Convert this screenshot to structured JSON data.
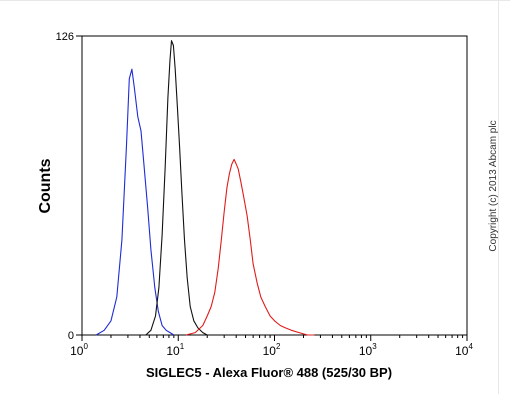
{
  "chart_data": {
    "type": "line",
    "title": "",
    "xlabel": "SIGLEC5 - Alexa Fluor® 488 (525/30 BP)",
    "ylabel": "Counts",
    "x_scale": "log",
    "xlim": [
      1,
      10000
    ],
    "ylim": [
      0,
      126
    ],
    "x_ticks": [
      {
        "value": 1,
        "base": "10",
        "exp": "0"
      },
      {
        "value": 10,
        "base": "10",
        "exp": "1"
      },
      {
        "value": 100,
        "base": "10",
        "exp": "2"
      },
      {
        "value": 1000,
        "base": "10",
        "exp": "3"
      },
      {
        "value": 10000,
        "base": "10",
        "exp": "4"
      }
    ],
    "y_ticks": [
      {
        "value": 0,
        "label": "0"
      },
      {
        "value": 126,
        "label": "126"
      }
    ],
    "grid": false,
    "legend": "none",
    "series": [
      {
        "color": "#1f2bd6",
        "x": [
          1.4,
          1.7,
          2.0,
          2.3,
          2.6,
          2.9,
          3.1,
          3.3,
          3.5,
          3.8,
          4.1,
          4.4,
          4.8,
          5.2,
          5.7,
          6.2,
          6.8,
          7.5,
          8.2,
          9.0
        ],
        "y": [
          0,
          2,
          6,
          16,
          40,
          80,
          108,
          112,
          104,
          92,
          86,
          72,
          54,
          36,
          20,
          10,
          4,
          2,
          1,
          0
        ]
      },
      {
        "color": "#111111",
        "x": [
          4.6,
          5.2,
          5.8,
          6.3,
          6.8,
          7.3,
          7.8,
          8.2,
          8.5,
          8.9,
          9.3,
          9.8,
          10.3,
          10.9,
          11.6,
          12.4,
          13.3,
          14.5,
          16.0,
          18.0,
          20.0
        ],
        "y": [
          0,
          2,
          8,
          20,
          42,
          70,
          100,
          116,
          124,
          122,
          112,
          96,
          80,
          60,
          40,
          24,
          12,
          6,
          3,
          1,
          0
        ]
      },
      {
        "color": "#e11b1b",
        "x": [
          12,
          15,
          18,
          20,
          22,
          24,
          26,
          28,
          30,
          32,
          34,
          36,
          38,
          40,
          42,
          45,
          48,
          52,
          56,
          60,
          66,
          72,
          80,
          90,
          100,
          115,
          130,
          150,
          180,
          220,
          260
        ],
        "y": [
          0,
          1,
          4,
          8,
          12,
          18,
          28,
          40,
          52,
          62,
          68,
          72,
          74,
          72,
          70,
          64,
          58,
          50,
          40,
          30,
          22,
          16,
          12,
          8,
          6,
          4,
          3,
          2,
          1,
          0,
          0
        ]
      }
    ]
  },
  "watermark": "Copyright (c) 2013 Abcam plc"
}
